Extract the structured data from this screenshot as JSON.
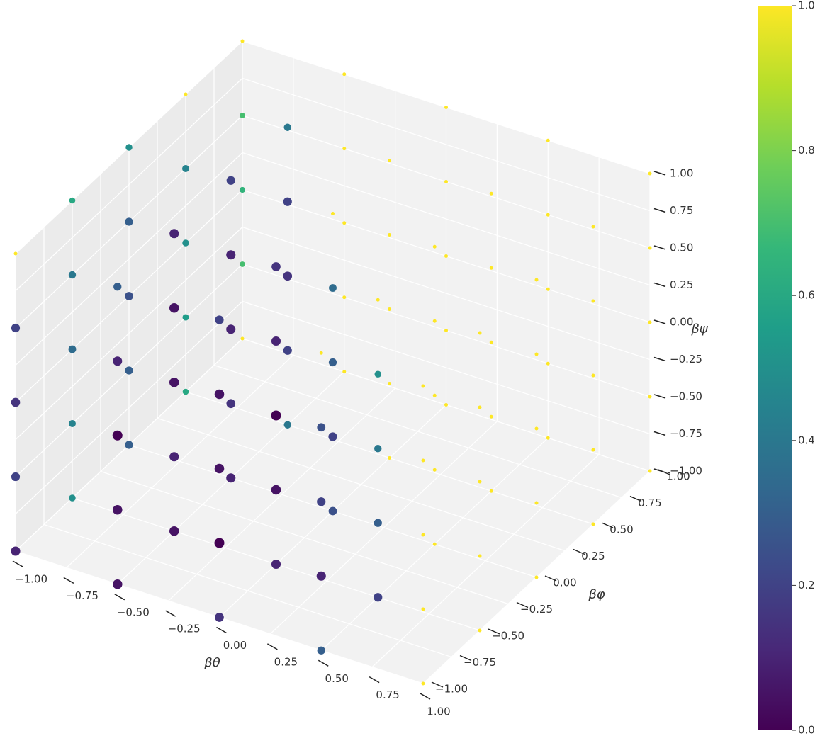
{
  "chart_data": {
    "type": "scatter3d",
    "xlabel": "βθ",
    "ylabel": "βφ",
    "zlabel": "βψ",
    "colormap": "viridis",
    "x": [
      -1,
      -0.5,
      0,
      0.5,
      1,
      -1,
      -0.5,
      0,
      0.5,
      1,
      -1,
      -0.5,
      0,
      0.5,
      1,
      -1,
      -0.5,
      0,
      0.5,
      1,
      -1,
      -0.5,
      0,
      0.5,
      1,
      -1,
      -0.5,
      0,
      0.5,
      1,
      -1,
      -0.5,
      0,
      0.5,
      1,
      -1,
      -0.5,
      0,
      0.5,
      1,
      -1,
      -0.5,
      0,
      0.5,
      1,
      -1,
      -0.5,
      0,
      0.5,
      1,
      -1,
      -0.5,
      0,
      0.5,
      1,
      -1,
      -0.5,
      0,
      0.5,
      1,
      -1,
      -0.5,
      0,
      0.5,
      1,
      -1,
      -0.5,
      0,
      0.5,
      1,
      -1,
      -0.5,
      0,
      0.5,
      1,
      -1,
      -0.5,
      0,
      0.5,
      1,
      -1,
      -0.5,
      0,
      0.5,
      1,
      -1,
      -0.5,
      0,
      0.5,
      1,
      -1,
      -0.5,
      0,
      0.5,
      1,
      -1,
      -0.5,
      0,
      0.5,
      1,
      -1,
      -0.5,
      0,
      0.5,
      1,
      -1,
      -0.5,
      0,
      0.5,
      1,
      -1,
      -0.5,
      0,
      0.5,
      1,
      -1,
      -0.5,
      0,
      0.5,
      1,
      -1,
      -0.5,
      0,
      0.5,
      1
    ],
    "y": [
      -1,
      -1,
      -1,
      -1,
      -1,
      -0.5,
      -0.5,
      -0.5,
      -0.5,
      -0.5,
      0,
      0,
      0,
      0,
      0,
      0.5,
      0.5,
      0.5,
      0.5,
      0.5,
      1,
      1,
      1,
      1,
      1,
      -1,
      -1,
      -1,
      -1,
      -1,
      -0.5,
      -0.5,
      -0.5,
      -0.5,
      -0.5,
      0,
      0,
      0,
      0,
      0,
      0.5,
      0.5,
      0.5,
      0.5,
      0.5,
      1,
      1,
      1,
      1,
      1,
      -1,
      -1,
      -1,
      -1,
      -1,
      -0.5,
      -0.5,
      -0.5,
      -0.5,
      -0.5,
      0,
      0,
      0,
      0,
      0,
      0.5,
      0.5,
      0.5,
      0.5,
      0.5,
      1,
      1,
      1,
      1,
      1,
      -1,
      -1,
      -1,
      -1,
      -1,
      -0.5,
      -0.5,
      -0.5,
      -0.5,
      -0.5,
      0,
      0,
      0,
      0,
      0,
      0.5,
      0.5,
      0.5,
      0.5,
      0.5,
      1,
      1,
      1,
      1,
      1,
      -1,
      -1,
      -1,
      -1,
      -1,
      -0.5,
      -0.5,
      -0.5,
      -0.5,
      -0.5,
      0,
      0,
      0,
      0,
      0,
      0.5,
      0.5,
      0.5,
      0.5,
      0.5,
      1,
      1,
      1,
      1,
      1
    ],
    "z": [
      -1,
      -1,
      -1,
      -1,
      -1,
      -1,
      -1,
      -1,
      -1,
      -1,
      -1,
      -1,
      -1,
      -1,
      -1,
      -1,
      -1,
      -1,
      -1,
      -1,
      -1,
      -1,
      -1,
      -1,
      -1,
      -0.5,
      -0.5,
      -0.5,
      -0.5,
      -0.5,
      -0.5,
      -0.5,
      -0.5,
      -0.5,
      -0.5,
      -0.5,
      -0.5,
      -0.5,
      -0.5,
      -0.5,
      -0.5,
      -0.5,
      -0.5,
      -0.5,
      -0.5,
      -0.5,
      -0.5,
      -0.5,
      -0.5,
      -0.5,
      0,
      0,
      0,
      0,
      0,
      0,
      0,
      0,
      0,
      0,
      0,
      0,
      0,
      0,
      0,
      0,
      0,
      0,
      0,
      0,
      0,
      0,
      0,
      0,
      0,
      0.5,
      0.5,
      0.5,
      0.5,
      0.5,
      0.5,
      0.5,
      0.5,
      0.5,
      0.5,
      0.5,
      0.5,
      0.5,
      0.5,
      0.5,
      0.5,
      0.5,
      0.5,
      0.5,
      0.5,
      0.5,
      0.5,
      0.5,
      0.5,
      0.5,
      1,
      1,
      1,
      1,
      1,
      1,
      1,
      1,
      1,
      1,
      1,
      1,
      1,
      1,
      1,
      1,
      1,
      1,
      1,
      1,
      1,
      1,
      1,
      1,
      1
    ],
    "values": [
      0.1,
      0.05,
      0.15,
      0.3,
      1,
      0.5,
      0.05,
      0.1,
      0.2,
      1,
      0.3,
      0.1,
      0.25,
      1,
      1,
      0.6,
      0.4,
      1,
      1,
      1,
      1,
      1,
      1,
      1,
      1,
      0.2,
      0.05,
      0,
      0.1,
      1,
      0.45,
      0.1,
      0.05,
      0.3,
      1,
      0.3,
      0.15,
      0.2,
      1,
      1,
      0.55,
      0.2,
      1,
      1,
      1,
      0.7,
      1,
      1,
      1,
      1,
      0.15,
      0,
      0.05,
      0.2,
      1,
      0.35,
      0.05,
      0,
      0.4,
      1,
      0.25,
      0.1,
      0.3,
      1,
      1,
      0.5,
      0.15,
      1,
      1,
      1,
      0.65,
      1,
      1,
      1,
      1,
      0.2,
      0.1,
      0.05,
      0.25,
      1,
      0.4,
      0.05,
      0.1,
      0.5,
      1,
      0.3,
      0.1,
      0.35,
      1,
      1,
      0.45,
      0.2,
      1,
      1,
      1,
      0.7,
      1,
      1,
      1,
      1,
      1,
      0.3,
      0.2,
      1,
      1,
      0.6,
      0.1,
      0.15,
      1,
      1,
      0.5,
      0.2,
      1,
      1,
      1,
      1,
      0.4,
      1,
      1,
      1,
      1,
      1,
      1,
      1,
      1
    ],
    "xlim": [
      -1,
      1
    ],
    "ylim": [
      -1,
      1
    ],
    "zlim": [
      -1,
      1
    ],
    "clim": [
      0,
      1
    ],
    "xticks": [
      {
        "value": -1,
        "label": "−1.00"
      },
      {
        "value": -0.75,
        "label": "−0.75"
      },
      {
        "value": -0.5,
        "label": "−0.50"
      },
      {
        "value": -0.25,
        "label": "−0.25"
      },
      {
        "value": 0,
        "label": "0.00"
      },
      {
        "value": 0.25,
        "label": "0.25"
      },
      {
        "value": 0.5,
        "label": "0.50"
      },
      {
        "value": 0.75,
        "label": "0.75"
      },
      {
        "value": 1,
        "label": "1.00"
      }
    ],
    "yticks": [
      {
        "value": -1,
        "label": "−1.00"
      },
      {
        "value": -0.75,
        "label": "−0.75"
      },
      {
        "value": -0.5,
        "label": "−0.50"
      },
      {
        "value": -0.25,
        "label": "−0.25"
      },
      {
        "value": 0,
        "label": "0.00"
      },
      {
        "value": 0.25,
        "label": "0.25"
      },
      {
        "value": 0.5,
        "label": "0.50"
      },
      {
        "value": 0.75,
        "label": "0.75"
      },
      {
        "value": 1,
        "label": "1.00"
      }
    ],
    "zticks": [
      {
        "value": -1,
        "label": "−1.00"
      },
      {
        "value": -0.75,
        "label": "−0.75"
      },
      {
        "value": -0.5,
        "label": "−0.50"
      },
      {
        "value": -0.25,
        "label": "−0.25"
      },
      {
        "value": 0,
        "label": "0.00"
      },
      {
        "value": 0.25,
        "label": "0.25"
      },
      {
        "value": 0.5,
        "label": "0.50"
      },
      {
        "value": 0.75,
        "label": "0.75"
      },
      {
        "value": 1,
        "label": "1.00"
      }
    ],
    "cticks": [
      {
        "value": 0,
        "label": "0.0"
      },
      {
        "value": 0.2,
        "label": "0.2"
      },
      {
        "value": 0.4,
        "label": "0.4"
      },
      {
        "value": 0.6,
        "label": "0.6"
      },
      {
        "value": 0.8,
        "label": "0.8"
      },
      {
        "value": 1,
        "label": "1.0"
      }
    ],
    "grid": true
  }
}
